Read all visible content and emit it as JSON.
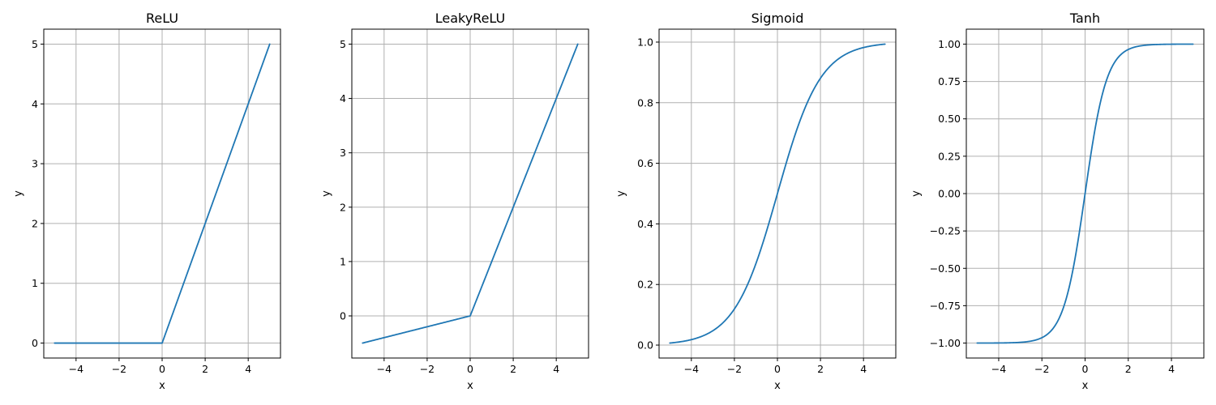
{
  "chart_data": [
    {
      "type": "line",
      "title": "ReLU",
      "xlabel": "x",
      "ylabel": "y",
      "xlim": [
        -5.5,
        5.5
      ],
      "ylim": [
        -0.25,
        5.25
      ],
      "xticks": [
        -4,
        -2,
        0,
        2,
        4
      ],
      "xtick_labels": [
        "−4",
        "−2",
        "0",
        "2",
        "4"
      ],
      "yticks": [
        0,
        1,
        2,
        3,
        4,
        5
      ],
      "ytick_labels": [
        "0",
        "1",
        "2",
        "3",
        "4",
        "5"
      ],
      "grid": true,
      "series": [
        {
          "function": "relu",
          "x_range": [
            -5,
            5
          ],
          "x": [
            -5,
            0,
            5
          ],
          "y": [
            0,
            0,
            5
          ]
        }
      ]
    },
    {
      "type": "line",
      "title": "LeakyReLU",
      "xlabel": "x",
      "ylabel": "y",
      "xlim": [
        -5.5,
        5.5
      ],
      "ylim": [
        -0.775,
        5.275
      ],
      "xticks": [
        -4,
        -2,
        0,
        2,
        4
      ],
      "xtick_labels": [
        "−4",
        "−2",
        "0",
        "2",
        "4"
      ],
      "yticks": [
        0,
        1,
        2,
        3,
        4,
        5
      ],
      "ytick_labels": [
        "0",
        "1",
        "2",
        "3",
        "4",
        "5"
      ],
      "grid": true,
      "series": [
        {
          "function": "leaky_relu",
          "negative_slope": 0.1,
          "x_range": [
            -5,
            5
          ],
          "x": [
            -5,
            0,
            5
          ],
          "y": [
            -0.5,
            0,
            5
          ]
        }
      ]
    },
    {
      "type": "line",
      "title": "Sigmoid",
      "xlabel": "x",
      "ylabel": "y",
      "xlim": [
        -5.5,
        5.5
      ],
      "ylim": [
        -0.0427,
        1.0427
      ],
      "xticks": [
        -4,
        -2,
        0,
        2,
        4
      ],
      "xtick_labels": [
        "−4",
        "−2",
        "0",
        "2",
        "4"
      ],
      "yticks": [
        0,
        0.2,
        0.4,
        0.6,
        0.8,
        1.0
      ],
      "ytick_labels": [
        "0.0",
        "0.2",
        "0.4",
        "0.6",
        "0.8",
        "1.0"
      ],
      "grid": true,
      "series": [
        {
          "function": "sigmoid",
          "x_range": [
            -5,
            5
          ],
          "x": [
            -5,
            -2,
            0,
            2,
            5
          ],
          "y": [
            0.007,
            0.119,
            0.5,
            0.881,
            0.993
          ]
        }
      ]
    },
    {
      "type": "line",
      "title": "Tanh",
      "xlabel": "x",
      "ylabel": "y",
      "xlim": [
        -5.5,
        5.5
      ],
      "ylim": [
        -1.1,
        1.1
      ],
      "xticks": [
        -4,
        -2,
        0,
        2,
        4
      ],
      "xtick_labels": [
        "−4",
        "−2",
        "0",
        "2",
        "4"
      ],
      "yticks": [
        -1.0,
        -0.75,
        -0.5,
        -0.25,
        0,
        0.25,
        0.5,
        0.75,
        1.0
      ],
      "ytick_labels": [
        "−1.00",
        "−0.75",
        "−0.50",
        "−0.25",
        "0.00",
        "0.25",
        "0.50",
        "0.75",
        "1.00"
      ],
      "grid": true,
      "series": [
        {
          "function": "tanh",
          "x_range": [
            -5,
            5
          ],
          "x": [
            -5,
            -2,
            0,
            2,
            5
          ],
          "y": [
            -1.0,
            -0.964,
            0,
            0.964,
            1.0
          ]
        }
      ]
    }
  ],
  "colors": {
    "line": "#1f77b4",
    "grid": "#b0b0b0",
    "axis": "#000000",
    "background": "#ffffff"
  }
}
